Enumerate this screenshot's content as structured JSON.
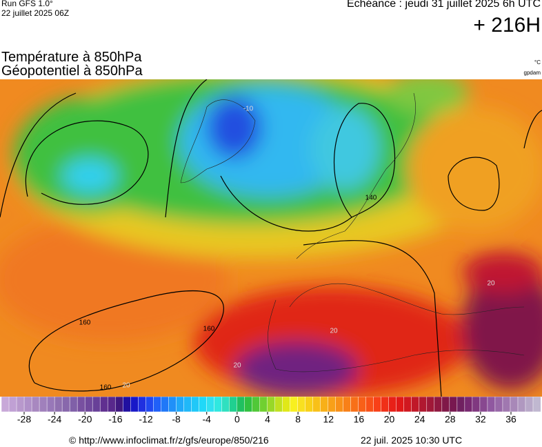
{
  "header": {
    "run": "Run GFS 1.0°",
    "date": "22 juillet 2025 06Z",
    "valid": "Echéance : jeudi 31 juillet 2025 6h UTC",
    "lead": "+ 216H"
  },
  "titles": [
    "Température à 850hPa",
    "Géopotentiel à 850hPa"
  ],
  "units": [
    "°C",
    "gpdam"
  ],
  "contour_labels": [
    "160",
    "160",
    "160",
    "140",
    "20",
    "20",
    "20",
    "20",
    "-10"
  ],
  "colorbar": {
    "ticks": [
      -28,
      -24,
      -20,
      -16,
      -12,
      -8,
      -4,
      0,
      4,
      8,
      12,
      16,
      20,
      24,
      28,
      32,
      36
    ],
    "colors": [
      "#c8a8d8",
      "#c0a0d4",
      "#b898cc",
      "#b090c8",
      "#a888c0",
      "#a080bc",
      "#9878b8",
      "#9070b0",
      "#8868ac",
      "#8060a8",
      "#7850a0",
      "#70489c",
      "#684098",
      "#603090",
      "#58288c",
      "#401880",
      "#2010a0",
      "#1818c8",
      "#2030e0",
      "#2048f0",
      "#2060f8",
      "#2078f8",
      "#2090f8",
      "#20a8f8",
      "#20b8f8",
      "#20c8f8",
      "#20d8f8",
      "#30e0f0",
      "#30e8e0",
      "#30e0c0",
      "#20d090",
      "#20c060",
      "#30c040",
      "#50c838",
      "#70d030",
      "#98d828",
      "#c0e020",
      "#e0e818",
      "#f8f020",
      "#f8e020",
      "#f8d018",
      "#f8c018",
      "#f8b018",
      "#f8a018",
      "#f89018",
      "#f88018",
      "#f87018",
      "#f86018",
      "#f85018",
      "#f84018",
      "#f03018",
      "#e82018",
      "#e01818",
      "#d01820",
      "#c01828",
      "#b01830",
      "#a01838",
      "#901840",
      "#801848",
      "#781850",
      "#702060",
      "#782870",
      "#803880",
      "#884890",
      "#9058a0",
      "#9868a8",
      "#a078b0",
      "#a888b8",
      "#b098c0",
      "#b8a8c8",
      "#c0b8d0"
    ]
  },
  "footer": {
    "source": "© http://www.infoclimat.fr/z/gfs/europe/850/216",
    "generated": "22 juil. 2025 10:30 UTC"
  }
}
